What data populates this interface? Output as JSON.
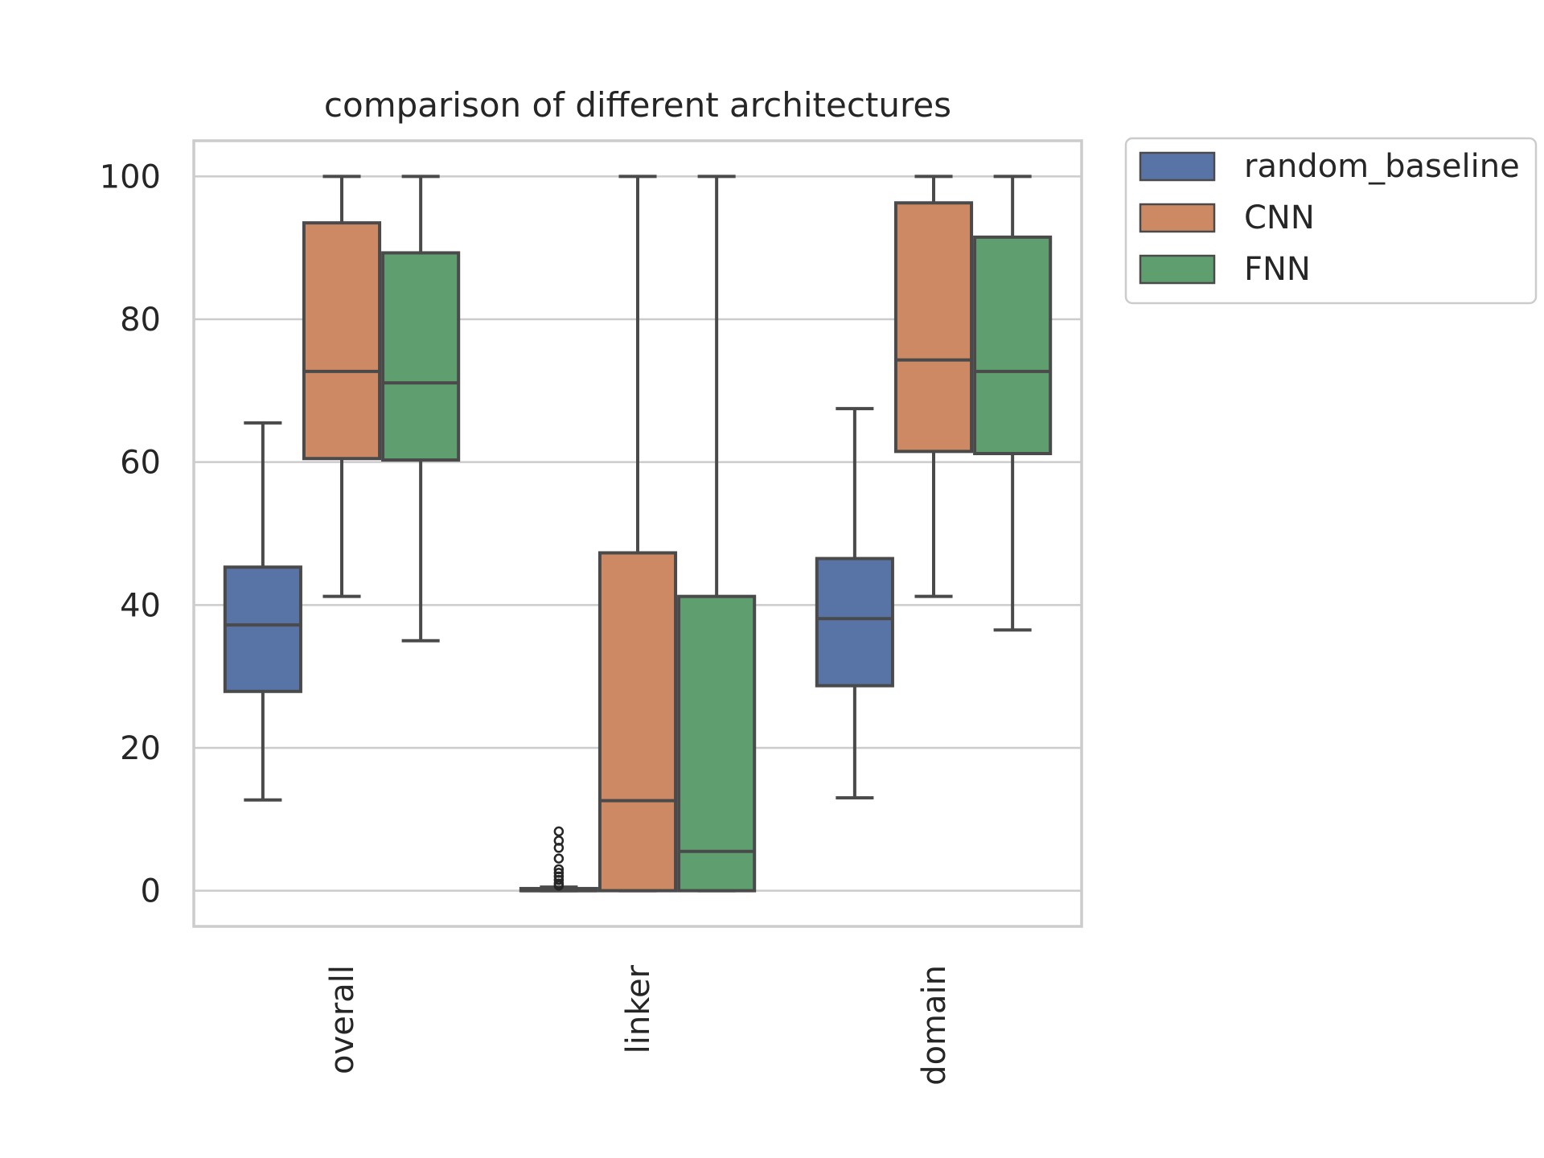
{
  "chart_data": {
    "type": "boxplot",
    "title": "comparison of different architectures",
    "xlabel": "",
    "ylabel": "",
    "ylim": [
      -5,
      105
    ],
    "yticks": [
      0,
      20,
      40,
      60,
      80,
      100
    ],
    "grid": true,
    "legend_position": "outside-top-right",
    "categories": [
      "overall",
      "linker",
      "domain"
    ],
    "series": [
      {
        "name": "random_baseline",
        "color": "#5874a6",
        "boxes": [
          {
            "whisker_low": 12.7,
            "q1": 27.9,
            "median": 37.2,
            "q3": 45.3,
            "whisker_high": 65.5,
            "outliers": []
          },
          {
            "whisker_low": 0,
            "q1": 0,
            "median": 0,
            "q3": 0.3,
            "whisker_high": 0.5,
            "outliers": [
              0.7,
              1.0,
              1.5,
              2.0,
              2.5,
              3.0,
              4.5,
              6.0,
              7.0,
              8.3
            ]
          },
          {
            "whisker_low": 13.0,
            "q1": 28.7,
            "median": 38.1,
            "q3": 46.5,
            "whisker_high": 67.5,
            "outliers": []
          }
        ]
      },
      {
        "name": "CNN",
        "color": "#cc8963",
        "boxes": [
          {
            "whisker_low": 41.2,
            "q1": 60.5,
            "median": 72.7,
            "q3": 93.5,
            "whisker_high": 100,
            "outliers": []
          },
          {
            "whisker_low": 0,
            "q1": 0,
            "median": 12.6,
            "q3": 47.3,
            "whisker_high": 100,
            "outliers": []
          },
          {
            "whisker_low": 41.2,
            "q1": 61.5,
            "median": 74.3,
            "q3": 96.3,
            "whisker_high": 100,
            "outliers": []
          }
        ]
      },
      {
        "name": "FNN",
        "color": "#5f9e6e",
        "boxes": [
          {
            "whisker_low": 35.0,
            "q1": 60.3,
            "median": 71.1,
            "q3": 89.3,
            "whisker_high": 100,
            "outliers": []
          },
          {
            "whisker_low": 0,
            "q1": 0,
            "median": 5.5,
            "q3": 41.2,
            "whisker_high": 100,
            "outliers": []
          },
          {
            "whisker_low": 36.5,
            "q1": 61.2,
            "median": 72.7,
            "q3": 91.5,
            "whisker_high": 100,
            "outliers": []
          }
        ]
      }
    ]
  }
}
